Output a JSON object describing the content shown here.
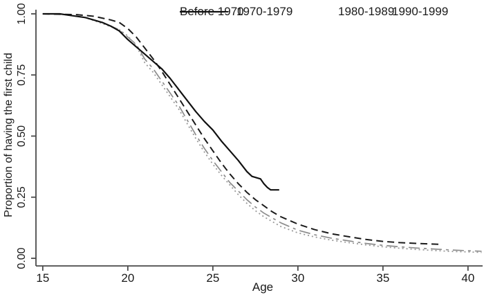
{
  "figure": {
    "background": "#ffffff",
    "text_color": "#1a1a1a",
    "axis_color": "#4a4a4a"
  },
  "chart_data": {
    "type": "line",
    "title": "",
    "xlabel": "Age",
    "ylabel": "Proportion of having the first child",
    "xlim": [
      14.6,
      41.0
    ],
    "ylim": [
      0,
      1.0
    ],
    "grid": false,
    "legend_position": "top-center, 2 columns, no frame",
    "x_ticks": [
      {
        "value": 15,
        "label": "15"
      },
      {
        "value": 20,
        "label": "20"
      },
      {
        "value": 25,
        "label": "25"
      },
      {
        "value": 30,
        "label": "30"
      },
      {
        "value": 35,
        "label": "35"
      },
      {
        "value": 40,
        "label": "40"
      }
    ],
    "y_ticks": [
      {
        "value": 0.0,
        "label": "0.00"
      },
      {
        "value": 0.25,
        "label": "0.25"
      },
      {
        "value": 0.5,
        "label": "0.50"
      },
      {
        "value": 0.75,
        "label": "0.75"
      },
      {
        "value": 1.0,
        "label": "1.00"
      }
    ],
    "series": [
      {
        "name": "Before 1970",
        "color": "#8c8c8c",
        "dash": "16 6 4 6",
        "width": 1.7,
        "points": [
          [
            15,
            1.0
          ],
          [
            16,
            1.0
          ],
          [
            16.5,
            0.995
          ],
          [
            17.5,
            0.985
          ],
          [
            18.5,
            0.965
          ],
          [
            19.5,
            0.935
          ],
          [
            20,
            0.905
          ],
          [
            20.5,
            0.875
          ],
          [
            21,
            0.815
          ],
          [
            21.5,
            0.775
          ],
          [
            22,
            0.725
          ],
          [
            22.5,
            0.675
          ],
          [
            23,
            0.625
          ],
          [
            23.5,
            0.565
          ],
          [
            24,
            0.505
          ],
          [
            24.5,
            0.45
          ],
          [
            25,
            0.4
          ],
          [
            25.5,
            0.355
          ],
          [
            26,
            0.31
          ],
          [
            26.5,
            0.275
          ],
          [
            27,
            0.24
          ],
          [
            27.5,
            0.21
          ],
          [
            28,
            0.185
          ],
          [
            29,
            0.145
          ],
          [
            30,
            0.115
          ],
          [
            31,
            0.096
          ],
          [
            32,
            0.082
          ],
          [
            33,
            0.071
          ],
          [
            34,
            0.061
          ],
          [
            35,
            0.053
          ],
          [
            36,
            0.047
          ],
          [
            37,
            0.042
          ],
          [
            38,
            0.038
          ],
          [
            39,
            0.034
          ],
          [
            40,
            0.031
          ],
          [
            40.8,
            0.029
          ]
        ]
      },
      {
        "name": "1970-1979",
        "color": "#999999",
        "dash": "2 4",
        "width": 1.8,
        "points": [
          [
            15,
            1.0
          ],
          [
            16,
            1.0
          ],
          [
            16.5,
            0.995
          ],
          [
            17.5,
            0.985
          ],
          [
            18.5,
            0.96
          ],
          [
            19.5,
            0.935
          ],
          [
            20,
            0.91
          ],
          [
            20.5,
            0.87
          ],
          [
            21,
            0.8
          ],
          [
            21.5,
            0.76
          ],
          [
            22,
            0.71
          ],
          [
            22.5,
            0.66
          ],
          [
            23,
            0.61
          ],
          [
            23.5,
            0.55
          ],
          [
            24,
            0.49
          ],
          [
            24.5,
            0.435
          ],
          [
            25,
            0.385
          ],
          [
            25.5,
            0.34
          ],
          [
            26,
            0.3
          ],
          [
            26.5,
            0.26
          ],
          [
            27,
            0.225
          ],
          [
            27.5,
            0.195
          ],
          [
            28,
            0.17
          ],
          [
            29,
            0.13
          ],
          [
            30,
            0.104
          ],
          [
            31,
            0.087
          ],
          [
            32,
            0.074
          ],
          [
            33,
            0.064
          ],
          [
            34,
            0.055
          ],
          [
            35,
            0.047
          ],
          [
            36,
            0.041
          ],
          [
            37,
            0.036
          ],
          [
            38,
            0.032
          ],
          [
            39,
            0.028
          ],
          [
            40,
            0.026
          ],
          [
            40.8,
            0.024
          ]
        ]
      },
      {
        "name": "1980-1989",
        "color": "#1a1a1a",
        "dash": "10 6",
        "width": 2,
        "points": [
          [
            15,
            1.0
          ],
          [
            17,
            0.997
          ],
          [
            18,
            0.99
          ],
          [
            19,
            0.975
          ],
          [
            19.5,
            0.965
          ],
          [
            20,
            0.94
          ],
          [
            20.5,
            0.905
          ],
          [
            21,
            0.86
          ],
          [
            21.5,
            0.815
          ],
          [
            22,
            0.765
          ],
          [
            22.5,
            0.71
          ],
          [
            23,
            0.655
          ],
          [
            23.5,
            0.6
          ],
          [
            24,
            0.545
          ],
          [
            24.5,
            0.49
          ],
          [
            25,
            0.44
          ],
          [
            25.5,
            0.39
          ],
          [
            26,
            0.345
          ],
          [
            26.5,
            0.305
          ],
          [
            27,
            0.27
          ],
          [
            27.5,
            0.24
          ],
          [
            28,
            0.215
          ],
          [
            28.5,
            0.19
          ],
          [
            29,
            0.17
          ],
          [
            30,
            0.14
          ],
          [
            31,
            0.117
          ],
          [
            32,
            0.1
          ],
          [
            33,
            0.088
          ],
          [
            34,
            0.077
          ],
          [
            35,
            0.069
          ],
          [
            36,
            0.064
          ],
          [
            37,
            0.061
          ],
          [
            38,
            0.058
          ],
          [
            38.5,
            0.057
          ]
        ]
      },
      {
        "name": "1990-1999",
        "color": "#111111",
        "dash": "",
        "width": 2.2,
        "points": [
          [
            15,
            1.0
          ],
          [
            16,
            1.0
          ],
          [
            16.5,
            0.995
          ],
          [
            17.5,
            0.985
          ],
          [
            18.5,
            0.965
          ],
          [
            19,
            0.95
          ],
          [
            19.5,
            0.93
          ],
          [
            20,
            0.895
          ],
          [
            20.5,
            0.865
          ],
          [
            21,
            0.835
          ],
          [
            21.5,
            0.805
          ],
          [
            22,
            0.775
          ],
          [
            22.5,
            0.735
          ],
          [
            23,
            0.69
          ],
          [
            23.5,
            0.645
          ],
          [
            24,
            0.6
          ],
          [
            24.5,
            0.56
          ],
          [
            25,
            0.525
          ],
          [
            25.5,
            0.48
          ],
          [
            26,
            0.44
          ],
          [
            26.5,
            0.4
          ],
          [
            27,
            0.355
          ],
          [
            27.3,
            0.335
          ],
          [
            27.8,
            0.325
          ],
          [
            28,
            0.305
          ],
          [
            28.2,
            0.29
          ],
          [
            28.4,
            0.28
          ],
          [
            28.9,
            0.28
          ]
        ]
      }
    ]
  },
  "legend": {
    "row1_col1": "Before 1970",
    "row1_col2": "1970-1979",
    "row2_col1": "1980-1989",
    "row2_col2": "1990-1999"
  }
}
